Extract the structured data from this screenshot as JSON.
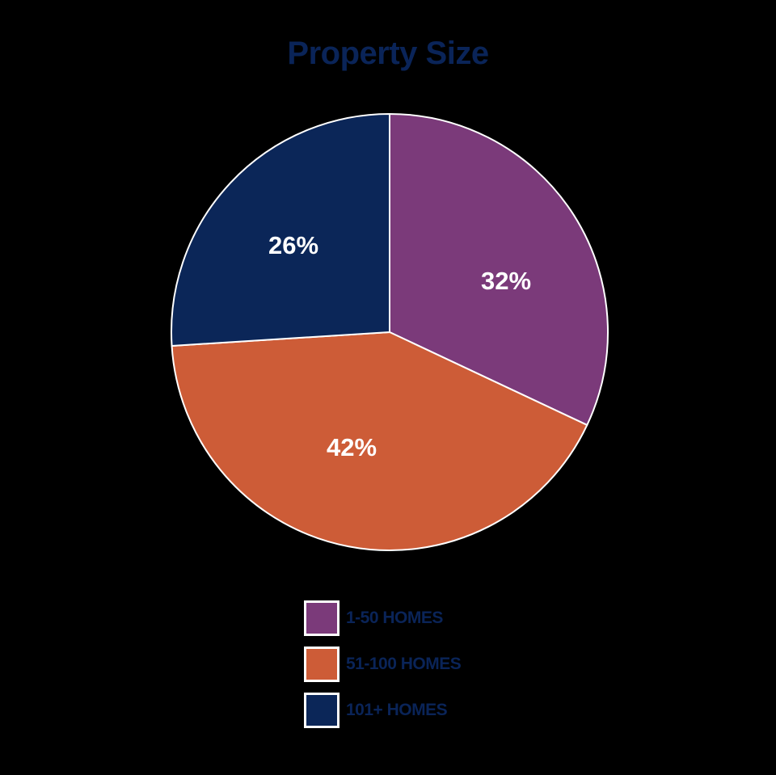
{
  "chart_data": {
    "type": "pie",
    "title": "Property Size",
    "categories": [
      "1-50 HOMES",
      "51-100 HOMES",
      "101+ HOMES"
    ],
    "values": [
      32,
      42,
      26
    ],
    "labels": [
      "32%",
      "42%",
      "26%"
    ],
    "colors": [
      "#7b3a7a",
      "#cd5c37",
      "#0b2658"
    ],
    "start_angle": "12 o'clock, clockwise",
    "legend_position": "bottom"
  },
  "title": "Property Size",
  "slices": [
    {
      "label": "32%",
      "color": "#7b3a7a"
    },
    {
      "label": "42%",
      "color": "#cd5c37"
    },
    {
      "label": "26%",
      "color": "#0b2658"
    }
  ],
  "legend": [
    {
      "label": "1-50 HOMES",
      "color": "#7b3a7a"
    },
    {
      "label": "51-100 HOMES",
      "color": "#cd5c37"
    },
    {
      "label": "101+ HOMES",
      "color": "#0b2658"
    }
  ]
}
